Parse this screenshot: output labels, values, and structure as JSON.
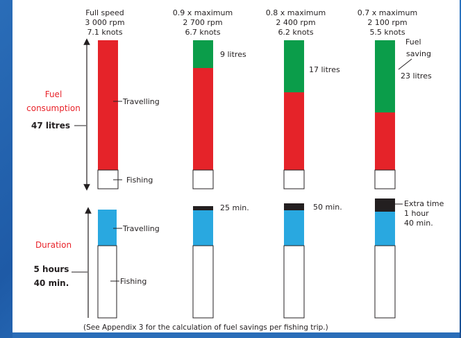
{
  "colors": {
    "travel_red": "#e52329",
    "saving_green": "#0b9d4a",
    "duration_blue": "#29a8e0",
    "extra_black": "#231f20",
    "accent_label": "#e8232a"
  },
  "columns": [
    {
      "line1": "Full speed",
      "line2": "3 000 rpm",
      "line3": "7.1 knots"
    },
    {
      "line1": "0.9 x maximum",
      "line2": "2 700 rpm",
      "line3": "6.7 knots"
    },
    {
      "line1": "0.8 x maximum",
      "line2": "2 400 rpm",
      "line3": "6.2 knots"
    },
    {
      "line1": "0.7 x maximum",
      "line2": "2 100 rpm",
      "line3": "5.5 knots"
    }
  ],
  "fuel": {
    "label_line1": "Fuel",
    "label_line2": "consumption",
    "total": "47 litres",
    "travelling": "Travelling",
    "fishing": "Fishing",
    "fuel_saving_line1": "Fuel",
    "fuel_saving_line2": "saving",
    "savings": [
      "9 litres",
      "17 litres",
      "23 litres"
    ]
  },
  "duration": {
    "label": "Duration",
    "total_line1": "5 hours",
    "total_line2": "40 min.",
    "travelling": "Travelling",
    "fishing": "Fishing",
    "extra_time_line1": "Extra time",
    "extra_time_line2": "1 hour",
    "extra_time_line3": "40 min.",
    "extras": [
      "25 min.",
      "50 min."
    ]
  },
  "footnote": "(See Appendix 3 for the calculation of fuel savings per fishing trip.)"
}
